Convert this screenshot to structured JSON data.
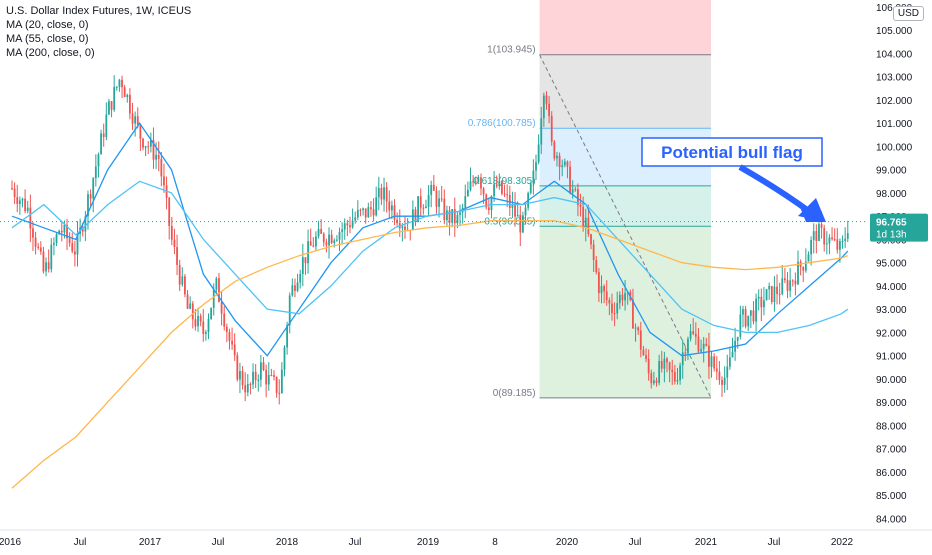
{
  "legend": {
    "title": "U.S. Dollar Index Futures, 1W, ICEUS",
    "ma1": "MA (20, close, 0)",
    "ma2": "MA (55, close, 0)",
    "ma3": "MA (200, close, 0)"
  },
  "currency": "USD",
  "price_label": {
    "value": "96.765",
    "countdown": "1d 13h"
  },
  "annotation": "Potential bull flag",
  "colors": {
    "up": "#26a69a",
    "down": "#ef5350",
    "ma20": "#2196f3",
    "ma55": "#4fc3f7",
    "ma200": "#ffb74d",
    "annotation": "#2962ff",
    "fib_red": "#ffcdd2",
    "fib_gray": "#e0e0e0",
    "fib_blue": "#d6ecff",
    "fib_teal": "#cfeee6",
    "fib_green": "#d8efd8"
  },
  "chart_data": {
    "type": "candlestick",
    "title": "U.S. Dollar Index Futures, 1W, ICEUS",
    "ylim": [
      83.5,
      106.3
    ],
    "y_ticks": [
      "84.000",
      "85.000",
      "86.000",
      "87.000",
      "88.000",
      "89.000",
      "90.000",
      "91.000",
      "92.000",
      "93.000",
      "94.000",
      "95.000",
      "96.000",
      "97.000",
      "98.000",
      "99.000",
      "100.000",
      "101.000",
      "102.000",
      "103.000",
      "104.000",
      "105.000",
      "106.000"
    ],
    "x_ticks": [
      "2016",
      "Jul",
      "2017",
      "Jul",
      "2018",
      "Jul",
      "2019",
      "8",
      "2020",
      "Jul",
      "2021",
      "Jul",
      "2022"
    ],
    "last_price": 96.765,
    "fib_levels": [
      {
        "ratio": "1",
        "label": "1(103.945)",
        "price": 103.945
      },
      {
        "ratio": "0.786",
        "label": "0.786(100.785)",
        "price": 100.785
      },
      {
        "ratio": "0.618",
        "label": "0.618(98.305)",
        "price": 98.305
      },
      {
        "ratio": "0.5",
        "label": "0.5(96.565)",
        "price": 96.565
      },
      {
        "ratio": "0",
        "label": "0(89.185)",
        "price": 89.185
      }
    ],
    "price_path": [
      {
        "t": 0.0,
        "p": 98.2
      },
      {
        "t": 0.25,
        "p": 97.3
      },
      {
        "t": 0.5,
        "p": 94.5
      },
      {
        "t": 0.75,
        "p": 96.5
      },
      {
        "t": 1.0,
        "p": 95.5
      },
      {
        "t": 1.3,
        "p": 99.0
      },
      {
        "t": 1.5,
        "p": 101.5
      },
      {
        "t": 1.7,
        "p": 103.0
      },
      {
        "t": 2.0,
        "p": 100.5
      },
      {
        "t": 2.3,
        "p": 99.5
      },
      {
        "t": 2.5,
        "p": 96.0
      },
      {
        "t": 2.75,
        "p": 93.0
      },
      {
        "t": 3.0,
        "p": 92.0
      },
      {
        "t": 3.2,
        "p": 94.0
      },
      {
        "t": 3.3,
        "p": 93.0
      },
      {
        "t": 3.5,
        "p": 90.5
      },
      {
        "t": 3.7,
        "p": 89.5
      },
      {
        "t": 3.9,
        "p": 90.5
      },
      {
        "t": 4.0,
        "p": 90.0
      },
      {
        "t": 4.2,
        "p": 89.5
      },
      {
        "t": 4.35,
        "p": 93.5
      },
      {
        "t": 4.5,
        "p": 94.8
      },
      {
        "t": 4.75,
        "p": 96.0
      },
      {
        "t": 5.0,
        "p": 96.2
      },
      {
        "t": 5.2,
        "p": 96.5
      },
      {
        "t": 5.4,
        "p": 97.0
      },
      {
        "t": 5.6,
        "p": 97.2
      },
      {
        "t": 5.8,
        "p": 98.0
      },
      {
        "t": 6.0,
        "p": 97.2
      },
      {
        "t": 6.2,
        "p": 96.5
      },
      {
        "t": 6.4,
        "p": 97.6
      },
      {
        "t": 6.6,
        "p": 98.0
      },
      {
        "t": 6.8,
        "p": 97.0
      },
      {
        "t": 7.0,
        "p": 96.8
      },
      {
        "t": 7.15,
        "p": 98.0
      },
      {
        "t": 7.3,
        "p": 99.0
      },
      {
        "t": 7.45,
        "p": 97.5
      },
      {
        "t": 7.6,
        "p": 98.3
      },
      {
        "t": 7.8,
        "p": 97.5
      },
      {
        "t": 8.0,
        "p": 96.5
      },
      {
        "t": 8.2,
        "p": 99.0
      },
      {
        "t": 8.35,
        "p": 103.0
      },
      {
        "t": 8.45,
        "p": 100.0
      },
      {
        "t": 8.6,
        "p": 99.5
      },
      {
        "t": 8.8,
        "p": 98.0
      },
      {
        "t": 9.0,
        "p": 96.5
      },
      {
        "t": 9.2,
        "p": 94.0
      },
      {
        "t": 9.4,
        "p": 93.0
      },
      {
        "t": 9.6,
        "p": 93.8
      },
      {
        "t": 9.8,
        "p": 92.0
      },
      {
        "t": 10.0,
        "p": 90.0
      },
      {
        "t": 10.2,
        "p": 90.5
      },
      {
        "t": 10.4,
        "p": 90.0
      },
      {
        "t": 10.6,
        "p": 92.0
      },
      {
        "t": 10.8,
        "p": 91.5
      },
      {
        "t": 11.0,
        "p": 90.5
      },
      {
        "t": 11.2,
        "p": 90.0
      },
      {
        "t": 11.4,
        "p": 92.5
      },
      {
        "t": 11.6,
        "p": 92.8
      },
      {
        "t": 11.8,
        "p": 93.5
      },
      {
        "t": 12.0,
        "p": 93.8
      },
      {
        "t": 12.2,
        "p": 94.2
      },
      {
        "t": 12.4,
        "p": 95.0
      },
      {
        "t": 12.6,
        "p": 96.3
      },
      {
        "t": 12.8,
        "p": 96.0
      },
      {
        "t": 13.0,
        "p": 95.5
      },
      {
        "t": 13.1,
        "p": 96.6
      }
    ],
    "series": [
      {
        "name": "MA (20, close, 0)",
        "points": [
          {
            "t": 0.0,
            "p": 97.0
          },
          {
            "t": 0.5,
            "p": 96.5
          },
          {
            "t": 1.0,
            "p": 96.0
          },
          {
            "t": 1.5,
            "p": 99.0
          },
          {
            "t": 2.0,
            "p": 101.0
          },
          {
            "t": 2.5,
            "p": 99.0
          },
          {
            "t": 3.0,
            "p": 94.5
          },
          {
            "t": 3.5,
            "p": 92.5
          },
          {
            "t": 4.0,
            "p": 91.0
          },
          {
            "t": 4.5,
            "p": 93.0
          },
          {
            "t": 5.0,
            "p": 95.0
          },
          {
            "t": 5.5,
            "p": 96.5
          },
          {
            "t": 6.0,
            "p": 97.0
          },
          {
            "t": 6.5,
            "p": 97.0
          },
          {
            "t": 7.0,
            "p": 97.2
          },
          {
            "t": 7.5,
            "p": 97.8
          },
          {
            "t": 8.0,
            "p": 97.5
          },
          {
            "t": 8.5,
            "p": 98.5
          },
          {
            "t": 9.0,
            "p": 97.5
          },
          {
            "t": 9.5,
            "p": 94.5
          },
          {
            "t": 10.0,
            "p": 92.0
          },
          {
            "t": 10.5,
            "p": 91.0
          },
          {
            "t": 11.0,
            "p": 91.2
          },
          {
            "t": 11.5,
            "p": 91.5
          },
          {
            "t": 12.0,
            "p": 92.8
          },
          {
            "t": 12.5,
            "p": 94.0
          },
          {
            "t": 13.0,
            "p": 95.2
          },
          {
            "t": 13.1,
            "p": 95.5
          }
        ]
      },
      {
        "name": "MA (55, close, 0)",
        "points": [
          {
            "t": 0.0,
            "p": 96.5
          },
          {
            "t": 0.5,
            "p": 97.5
          },
          {
            "t": 1.0,
            "p": 96.2
          },
          {
            "t": 1.5,
            "p": 97.5
          },
          {
            "t": 2.0,
            "p": 98.5
          },
          {
            "t": 2.5,
            "p": 98.0
          },
          {
            "t": 3.0,
            "p": 96.0
          },
          {
            "t": 3.5,
            "p": 94.5
          },
          {
            "t": 4.0,
            "p": 93.0
          },
          {
            "t": 4.5,
            "p": 92.8
          },
          {
            "t": 5.0,
            "p": 94.0
          },
          {
            "t": 5.5,
            "p": 95.5
          },
          {
            "t": 6.0,
            "p": 96.5
          },
          {
            "t": 6.5,
            "p": 97.0
          },
          {
            "t": 7.0,
            "p": 97.2
          },
          {
            "t": 7.5,
            "p": 97.5
          },
          {
            "t": 8.0,
            "p": 97.5
          },
          {
            "t": 8.5,
            "p": 97.8
          },
          {
            "t": 9.0,
            "p": 97.5
          },
          {
            "t": 9.5,
            "p": 96.0
          },
          {
            "t": 10.0,
            "p": 94.5
          },
          {
            "t": 10.5,
            "p": 93.0
          },
          {
            "t": 11.0,
            "p": 92.3
          },
          {
            "t": 11.5,
            "p": 92.0
          },
          {
            "t": 12.0,
            "p": 92.0
          },
          {
            "t": 12.5,
            "p": 92.3
          },
          {
            "t": 13.0,
            "p": 92.8
          },
          {
            "t": 13.1,
            "p": 93.0
          }
        ]
      },
      {
        "name": "MA (200, close, 0)",
        "points": [
          {
            "t": 0.0,
            "p": 85.3
          },
          {
            "t": 0.5,
            "p": 86.5
          },
          {
            "t": 1.0,
            "p": 87.5
          },
          {
            "t": 1.5,
            "p": 89.0
          },
          {
            "t": 2.0,
            "p": 90.5
          },
          {
            "t": 2.5,
            "p": 92.0
          },
          {
            "t": 3.0,
            "p": 93.2
          },
          {
            "t": 3.5,
            "p": 94.2
          },
          {
            "t": 4.0,
            "p": 94.8
          },
          {
            "t": 4.5,
            "p": 95.3
          },
          {
            "t": 5.0,
            "p": 95.7
          },
          {
            "t": 5.5,
            "p": 96.0
          },
          {
            "t": 6.0,
            "p": 96.3
          },
          {
            "t": 6.5,
            "p": 96.5
          },
          {
            "t": 7.0,
            "p": 96.6
          },
          {
            "t": 7.5,
            "p": 96.8
          },
          {
            "t": 8.0,
            "p": 96.8
          },
          {
            "t": 8.5,
            "p": 96.8
          },
          {
            "t": 9.0,
            "p": 96.5
          },
          {
            "t": 9.5,
            "p": 96.0
          },
          {
            "t": 10.0,
            "p": 95.5
          },
          {
            "t": 10.5,
            "p": 95.0
          },
          {
            "t": 11.0,
            "p": 94.8
          },
          {
            "t": 11.5,
            "p": 94.7
          },
          {
            "t": 12.0,
            "p": 94.8
          },
          {
            "t": 12.5,
            "p": 95.0
          },
          {
            "t": 13.0,
            "p": 95.2
          },
          {
            "t": 13.1,
            "p": 95.3
          }
        ]
      }
    ]
  }
}
